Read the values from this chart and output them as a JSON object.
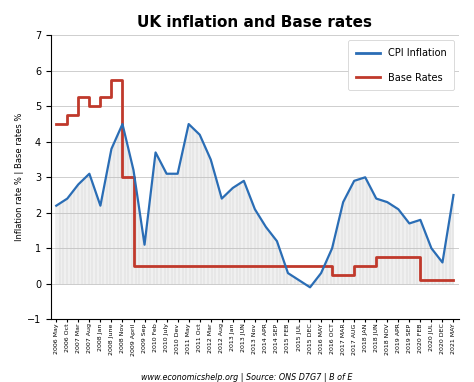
{
  "title": "UK inflation and Base rates",
  "ylabel": "Inflation rate % | Base rates %",
  "source_text": "www.economicshelp.org | Source: ONS D7G7 | B of E",
  "ylim": [
    -1,
    7
  ],
  "yticks": [
    -1,
    0,
    1,
    2,
    3,
    4,
    5,
    6,
    7
  ],
  "cpi_color": "#2a6db5",
  "base_color": "#c0392b",
  "x_labels": [
    "2006 May",
    "2006 Oct",
    "2007 Mar",
    "2007 Aug",
    "2008 Jan",
    "2008 June",
    "2008 Nov",
    "2009 April",
    "2009 Sep",
    "2010 Feb",
    "2010 July",
    "2010 Dev",
    "2011 May",
    "2011 Oct",
    "2012 Mar",
    "2012 Aug",
    "2013 Jan",
    "2013 JUN",
    "2013 Nov",
    "2014 APR",
    "2014 SEP",
    "2015 FEB",
    "2015 JUL",
    "2015 DEC",
    "2016 MAY",
    "2016 OCT",
    "2017 MAR",
    "2017 AUG",
    "2018 JAN",
    "2018 JUN",
    "2018 NOV",
    "2019 APR",
    "2019 SEP",
    "2020 FEB",
    "2020 JUL",
    "2020 DEC",
    "2021 MAY"
  ],
  "cpi_values": [
    2.2,
    2.4,
    2.8,
    3.1,
    2.2,
    3.8,
    4.5,
    3.2,
    1.1,
    3.7,
    3.1,
    3.1,
    4.5,
    4.2,
    3.5,
    2.4,
    2.7,
    2.9,
    2.1,
    1.6,
    1.2,
    0.3,
    0.1,
    -0.1,
    0.3,
    1.0,
    2.3,
    2.9,
    3.0,
    2.4,
    2.3,
    2.1,
    1.7,
    1.8,
    1.0,
    0.6,
    2.5
  ],
  "base_values": [
    4.5,
    4.75,
    5.25,
    5.0,
    5.25,
    5.75,
    3.0,
    0.5,
    0.5,
    0.5,
    0.5,
    0.5,
    0.5,
    0.5,
    0.5,
    0.5,
    0.5,
    0.5,
    0.5,
    0.5,
    0.5,
    0.5,
    0.5,
    0.5,
    0.5,
    0.25,
    0.25,
    0.5,
    0.5,
    0.75,
    0.75,
    0.75,
    0.75,
    0.1,
    0.1,
    0.1,
    0.1
  ],
  "legend_cpi_label": "CPI Inflation",
  "legend_base_label": "Base Rates"
}
